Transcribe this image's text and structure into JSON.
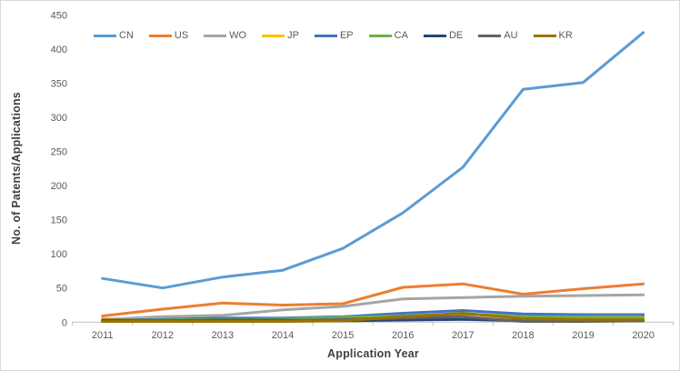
{
  "chart_data": {
    "type": "line",
    "title": "",
    "xlabel": "Application Year",
    "ylabel": "No. of Patents/Applications",
    "ylim": [
      0,
      450
    ],
    "yticks": [
      0,
      50,
      100,
      150,
      200,
      250,
      300,
      350,
      400,
      450
    ],
    "grid": "off",
    "legend_position": "top",
    "axis_color": "#bfbfbf",
    "tick_label_color": "#595959",
    "categories": [
      "2011",
      "2012",
      "2013",
      "2014",
      "2015",
      "2016",
      "2017",
      "2018",
      "2019",
      "2020"
    ],
    "series": [
      {
        "name": "CN",
        "color": "#5B9BD5",
        "values": [
          64,
          50,
          66,
          76,
          108,
          160,
          227,
          341,
          351,
          424
        ]
      },
      {
        "name": "US",
        "color": "#ED7D31",
        "values": [
          9,
          19,
          28,
          25,
          27,
          51,
          56,
          41,
          49,
          56
        ]
      },
      {
        "name": "WO",
        "color": "#A5A5A5",
        "values": [
          4,
          8,
          10,
          18,
          23,
          34,
          36,
          38,
          39,
          40
        ]
      },
      {
        "name": "JP",
        "color": "#FFC000",
        "values": [
          5,
          4,
          5,
          5,
          6,
          8,
          12,
          9,
          8,
          9
        ]
      },
      {
        "name": "EP",
        "color": "#4472C4",
        "values": [
          3,
          4,
          6,
          6,
          8,
          13,
          17,
          12,
          11,
          11
        ]
      },
      {
        "name": "CA",
        "color": "#70AD47",
        "values": [
          2,
          3,
          4,
          5,
          7,
          9,
          12,
          8,
          8,
          8
        ]
      },
      {
        "name": "DE",
        "color": "#264478",
        "values": [
          2,
          2,
          3,
          3,
          2,
          3,
          4,
          2,
          2,
          2
        ]
      },
      {
        "name": "AU",
        "color": "#636363",
        "values": [
          1,
          2,
          2,
          2,
          4,
          6,
          8,
          1,
          1,
          2
        ]
      },
      {
        "name": "KR",
        "color": "#997300",
        "values": [
          1,
          1,
          1,
          1,
          2,
          8,
          13,
          5,
          4,
          4
        ]
      }
    ]
  }
}
